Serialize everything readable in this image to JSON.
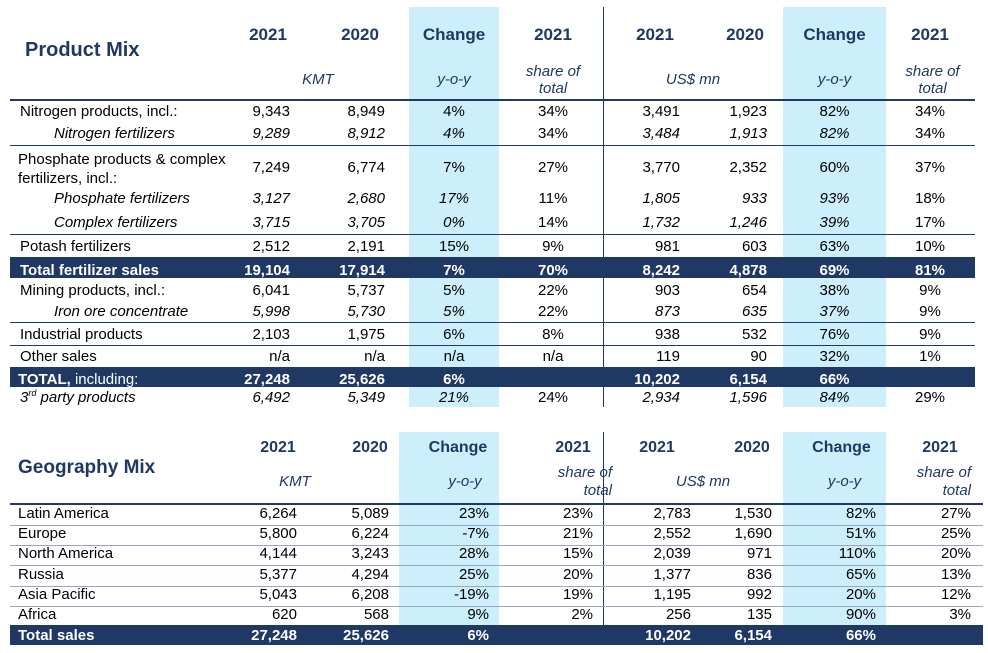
{
  "product": {
    "title": "Product Mix",
    "headers": {
      "kmt_2021": "2021",
      "kmt_2020": "2020",
      "kmt_change": "Change",
      "kmt_share": "2021",
      "usd_2021": "2021",
      "usd_2020": "2020",
      "usd_change": "Change",
      "usd_share": "2021"
    },
    "subheaders": {
      "kmt": "KMT",
      "kmt_yoy": "y-o-y",
      "kmt_share": "share of total",
      "usd": "US$ mn",
      "usd_yoy": "y-o-y",
      "usd_share": "share of total"
    },
    "rows": [
      {
        "label": "Nitrogen products, incl.:",
        "vals": [
          "9,343",
          "8,949",
          "4%",
          "34%",
          "3,491",
          "1,923",
          "82%",
          "34%"
        ]
      },
      {
        "label": "Nitrogen fertilizers",
        "vals": [
          "9,289",
          "8,912",
          "4%",
          "34%",
          "3,484",
          "1,913",
          "82%",
          "34%"
        ]
      },
      {
        "label": "Phosphate products & complex fertilizers, incl.:",
        "vals": [
          "7,249",
          "6,774",
          "7%",
          "27%",
          "3,770",
          "2,352",
          "60%",
          "37%"
        ]
      },
      {
        "label": "Phosphate fertilizers",
        "vals": [
          "3,127",
          "2,680",
          "17%",
          "11%",
          "1,805",
          "933",
          "93%",
          "18%"
        ]
      },
      {
        "label": "Complex fertilizers",
        "vals": [
          "3,715",
          "3,705",
          "0%",
          "14%",
          "1,732",
          "1,246",
          "39%",
          "17%"
        ]
      },
      {
        "label": "Potash fertilizers",
        "vals": [
          "2,512",
          "2,191",
          "15%",
          "9%",
          "981",
          "603",
          "63%",
          "10%"
        ]
      },
      {
        "label": "Total fertilizer sales",
        "vals": [
          "19,104",
          "17,914",
          "7%",
          "70%",
          "8,242",
          "4,878",
          "69%",
          "81%"
        ]
      },
      {
        "label": "Mining products, incl.:",
        "vals": [
          "6,041",
          "5,737",
          "5%",
          "22%",
          "903",
          "654",
          "38%",
          "9%"
        ]
      },
      {
        "label": "Iron ore concentrate",
        "vals": [
          "5,998",
          "5,730",
          "5%",
          "22%",
          "873",
          "635",
          "37%",
          "9%"
        ]
      },
      {
        "label": "Industrial products",
        "vals": [
          "2,103",
          "1,975",
          "6%",
          "8%",
          "938",
          "532",
          "76%",
          "9%"
        ]
      },
      {
        "label": "Other sales",
        "vals": [
          "n/a",
          "n/a",
          "n/a",
          "n/a",
          "119",
          "90",
          "32%",
          "1%"
        ]
      },
      {
        "label_bold": "TOTAL,",
        "label_rest": " including:",
        "vals": [
          "27,248",
          "25,626",
          "6%",
          "",
          "10,202",
          "6,154",
          "66%",
          ""
        ]
      },
      {
        "label_pre": "3",
        "label_sup": "rd",
        "label_post": " party products",
        "vals": [
          "6,492",
          "5,349",
          "21%",
          "24%",
          "2,934",
          "1,596",
          "84%",
          "29%"
        ]
      }
    ]
  },
  "geo": {
    "title": "Geography Mix",
    "headers": {
      "kmt_2021": "2021",
      "kmt_2020": "2020",
      "kmt_change": "Change",
      "kmt_share": "2021",
      "usd_2021": "2021",
      "usd_2020": "2020",
      "usd_change": "Change",
      "usd_share": "2021"
    },
    "subheaders": {
      "kmt": "KMT",
      "kmt_yoy": "y-o-y",
      "kmt_share": "share of total",
      "usd": "US$ mn",
      "usd_yoy": "y-o-y",
      "usd_share": "share of total"
    },
    "rows": [
      {
        "label": "Latin America",
        "vals": [
          "6,264",
          "5,089",
          "23%",
          "23%",
          "2,783",
          "1,530",
          "82%",
          "27%"
        ]
      },
      {
        "label": "Europe",
        "vals": [
          "5,800",
          "6,224",
          "-7%",
          "21%",
          "2,552",
          "1,690",
          "51%",
          "25%"
        ]
      },
      {
        "label": "North America",
        "vals": [
          "4,144",
          "3,243",
          "28%",
          "15%",
          "2,039",
          "971",
          "110%",
          "20%"
        ]
      },
      {
        "label": "Russia",
        "vals": [
          "5,377",
          "4,294",
          "25%",
          "20%",
          "1,377",
          "836",
          "65%",
          "13%"
        ]
      },
      {
        "label": "Asia Pacific",
        "vals": [
          "5,043",
          "6,208",
          "-19%",
          "19%",
          "1,195",
          "992",
          "20%",
          "12%"
        ]
      },
      {
        "label": "Africa",
        "vals": [
          "620",
          "568",
          "9%",
          "2%",
          "256",
          "135",
          "90%",
          "3%"
        ]
      },
      {
        "label": "Total sales",
        "vals": [
          "27,248",
          "25,626",
          "6%",
          "",
          "10,202",
          "6,154",
          "66%",
          ""
        ]
      }
    ]
  },
  "colors": {
    "navy": "#1f3864",
    "highlight": "#cdeefb"
  }
}
